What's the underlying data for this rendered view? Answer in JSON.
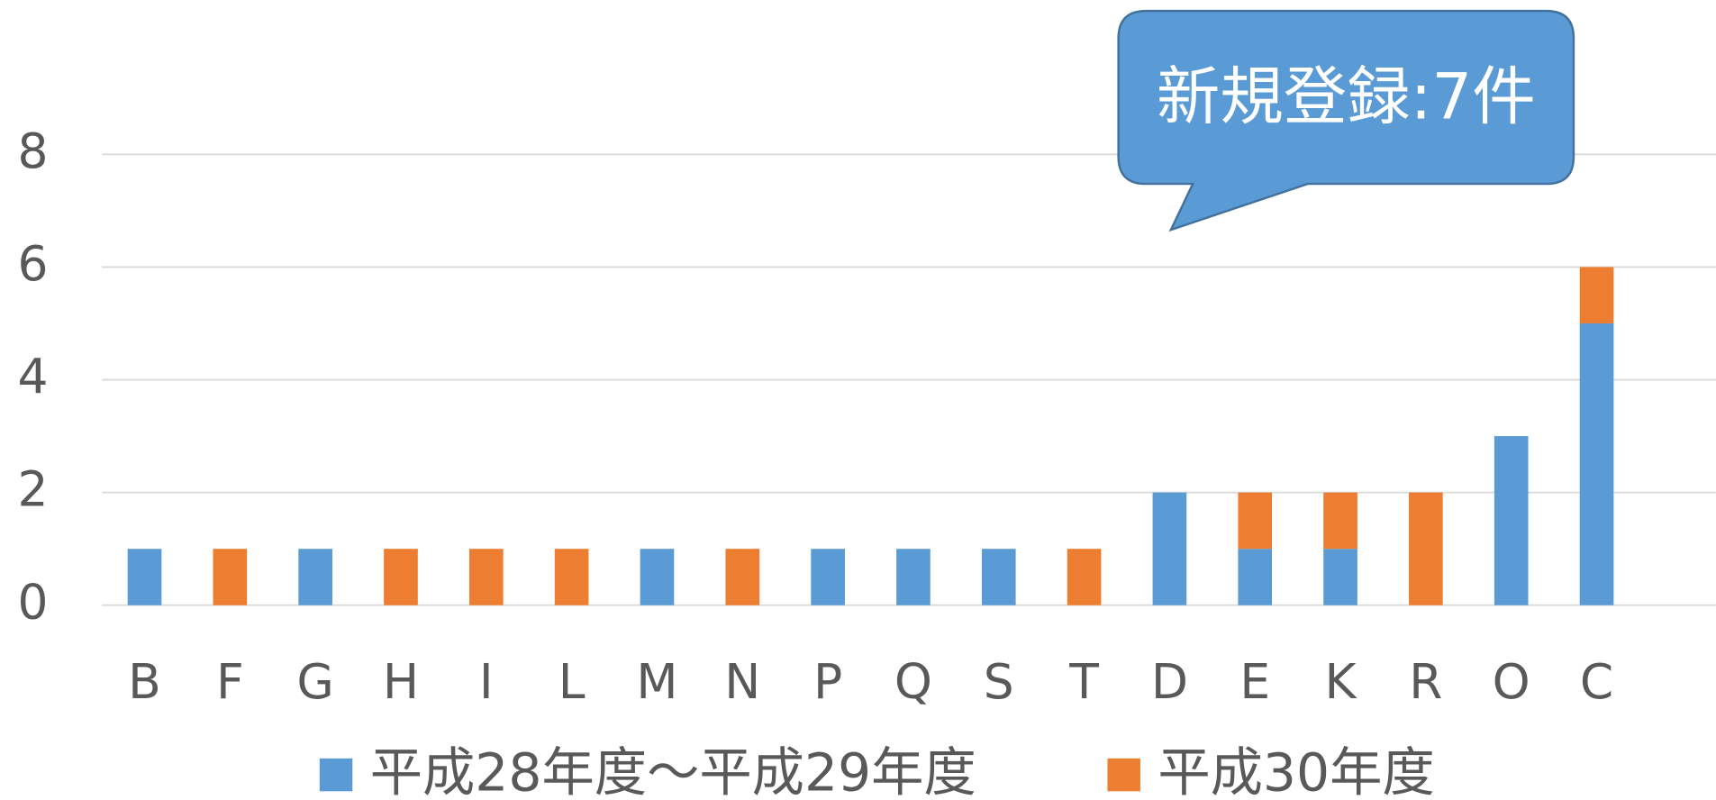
{
  "chart_data": {
    "type": "stacked_bar",
    "annotation": "新規登録:7件",
    "categories": [
      "B",
      "F",
      "G",
      "H",
      "I",
      "L",
      "M",
      "N",
      "P",
      "Q",
      "S",
      "T",
      "D",
      "E",
      "K",
      "R",
      "O",
      "C"
    ],
    "series": [
      {
        "name": "平成28年度～平成29年度",
        "color": "#5b9bd5",
        "values": [
          1,
          0,
          1,
          0,
          0,
          0,
          1,
          0,
          1,
          1,
          1,
          0,
          2,
          1,
          1,
          0,
          3,
          5
        ]
      },
      {
        "name": "平成30年度",
        "color": "#ed7d31",
        "values": [
          0,
          1,
          0,
          1,
          1,
          1,
          0,
          1,
          0,
          0,
          0,
          1,
          0,
          1,
          1,
          2,
          0,
          1
        ]
      }
    ],
    "ylim": [
      0,
      8
    ],
    "yticks": [
      0,
      2,
      4,
      6,
      8
    ],
    "grid": true,
    "legend": "bottom"
  }
}
